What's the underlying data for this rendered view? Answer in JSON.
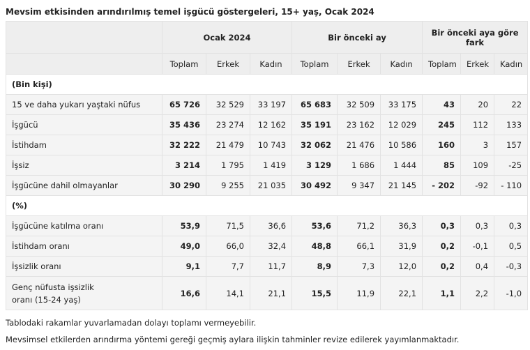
{
  "title": "Mevsim etkisinden arındırılmış temel işgücü göstergeleri, 15+ yaş, Ocak 2024",
  "table": {
    "group_headers": [
      "Ocak 2024",
      "Bir önceki ay",
      "Bir önceki aya göre fark"
    ],
    "sub_headers": [
      "Toplam",
      "Erkek",
      "Kadın",
      "Toplam",
      "Erkek",
      "Kadın",
      "Toplam",
      "Erkek",
      "Kadın"
    ],
    "sections": [
      {
        "label": "(Bin kişi)",
        "rows": [
          {
            "label": "15 ve daha yukarı yaştaki nüfus",
            "values": [
              "65 726",
              "32 529",
              "33 197",
              "65 683",
              "32 509",
              "33 175",
              "43",
              "20",
              "22"
            ]
          },
          {
            "label": "İşgücü",
            "values": [
              "35 436",
              "23 274",
              "12 162",
              "35 191",
              "23 162",
              "12 029",
              "245",
              "112",
              "133"
            ]
          },
          {
            "label": "İstihdam",
            "values": [
              "32 222",
              "21 479",
              "10 743",
              "32 062",
              "21 476",
              "10 586",
              "160",
              "3",
              "157"
            ]
          },
          {
            "label": "İşsiz",
            "values": [
              "3 214",
              "1 795",
              "1 419",
              "3 129",
              "1 686",
              "1 444",
              "85",
              "109",
              "-25"
            ]
          },
          {
            "label": "İşgücüne dahil olmayanlar",
            "values": [
              "30 290",
              "9 255",
              "21 035",
              "30 492",
              "9 347",
              "21 145",
              "- 202",
              "-92",
              "- 110"
            ]
          }
        ]
      },
      {
        "label": "(%)",
        "rows": [
          {
            "label": "İşgücüne katılma oranı",
            "values": [
              "53,9",
              "71,5",
              "36,6",
              "53,6",
              "71,2",
              "36,3",
              "0,3",
              "0,3",
              "0,3"
            ]
          },
          {
            "label": "İstihdam oranı",
            "values": [
              "49,0",
              "66,0",
              "32,4",
              "48,8",
              "66,1",
              "31,9",
              "0,2",
              "-0,1",
              "0,5"
            ]
          },
          {
            "label": "İşsizlik oranı",
            "values": [
              "9,1",
              "7,7",
              "11,7",
              "8,9",
              "7,3",
              "12,0",
              "0,2",
              "0,4",
              "-0,3"
            ]
          },
          {
            "label": "Genç nüfusta işsizlik oranı (15-24 yaş)",
            "values": [
              "16,6",
              "14,1",
              "21,1",
              "15,5",
              "11,9",
              "22,1",
              "1,1",
              "2,2",
              "-1,0"
            ]
          }
        ]
      }
    ]
  },
  "notes": [
    "Tablodaki rakamlar yuvarlamadan dolayı toplamı vermeyebilir.",
    "Mevsimsel etkilerden arındırma yöntemi gereği geçmiş aylara ilişkin tahminler revize edilerek yayımlanmaktadır."
  ]
}
